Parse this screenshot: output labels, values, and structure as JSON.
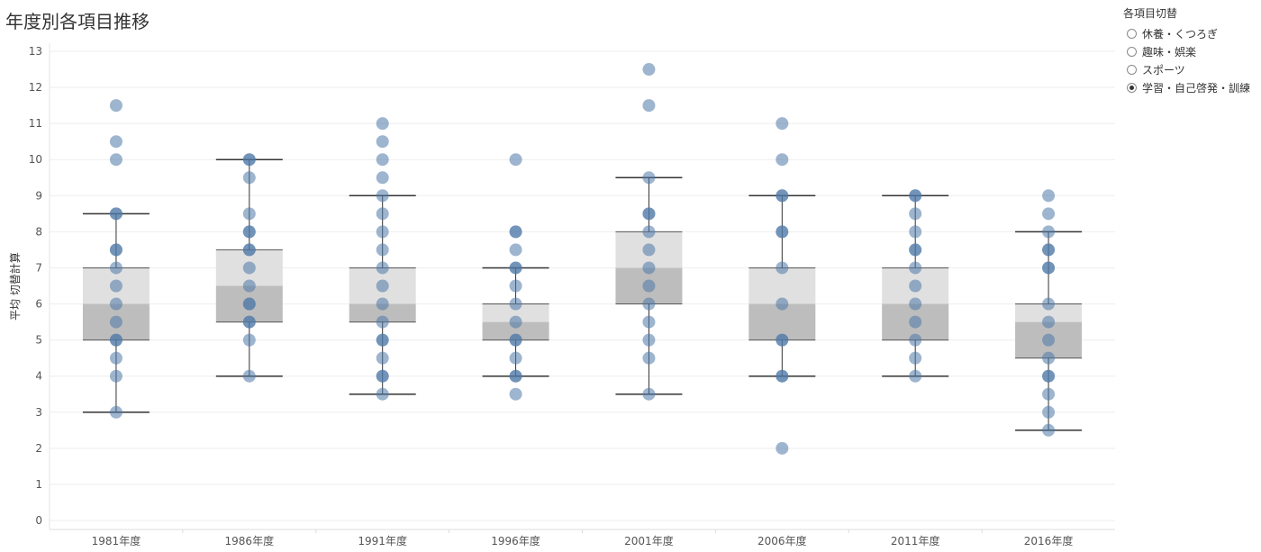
{
  "title": "年度別各項目推移",
  "legend": {
    "title": "各項目切替",
    "options": [
      {
        "label": "休養・くつろぎ",
        "selected": false
      },
      {
        "label": "趣味・娯楽",
        "selected": false
      },
      {
        "label": "スポーツ",
        "selected": false
      },
      {
        "label": "学習・自己啓発・訓練",
        "selected": true
      }
    ]
  },
  "colors": {
    "dot": "#4e79a7",
    "box_upper": "#e0e0e0",
    "box_lower": "#bdbdbd",
    "whisker": "#333333",
    "grid": "#eeeeee"
  },
  "chart_data": {
    "type": "box-and-scatter",
    "title": "年度別各項目推移",
    "ylabel": "平均 切替計算",
    "xlabel": "",
    "ylim": [
      0,
      13
    ],
    "yticks": [
      0,
      1,
      2,
      3,
      4,
      5,
      6,
      7,
      8,
      9,
      10,
      11,
      12,
      13
    ],
    "categories": [
      "1981年度",
      "1986年度",
      "1991年度",
      "1996年度",
      "2001年度",
      "2006年度",
      "2011年度",
      "2016年度"
    ],
    "boxes": [
      {
        "category": "1981年度",
        "whisker_low": 3,
        "q1": 5,
        "median": 6,
        "q3": 7,
        "whisker_high": 8.5
      },
      {
        "category": "1986年度",
        "whisker_low": 4,
        "q1": 5.5,
        "median": 6.5,
        "q3": 7.5,
        "whisker_high": 10
      },
      {
        "category": "1991年度",
        "whisker_low": 3.5,
        "q1": 5.5,
        "median": 6,
        "q3": 7,
        "whisker_high": 9
      },
      {
        "category": "1996年度",
        "whisker_low": 4,
        "q1": 5,
        "median": 5.5,
        "q3": 6,
        "whisker_high": 7
      },
      {
        "category": "2001年度",
        "whisker_low": 3.5,
        "q1": 6,
        "median": 7,
        "q3": 8,
        "whisker_high": 9.5
      },
      {
        "category": "2006年度",
        "whisker_low": 4,
        "q1": 5,
        "median": 6,
        "q3": 7,
        "whisker_high": 9
      },
      {
        "category": "2011年度",
        "whisker_low": 4,
        "q1": 5,
        "median": 6,
        "q3": 7,
        "whisker_high": 9
      },
      {
        "category": "2016年度",
        "whisker_low": 2.5,
        "q1": 4.5,
        "median": 5.5,
        "q3": 6,
        "whisker_high": 8
      }
    ],
    "points": [
      {
        "category": "1981年度",
        "values": [
          11.5,
          10.5,
          10,
          8.5,
          8.5,
          7.5,
          7.5,
          7,
          6.5,
          6,
          5.5,
          5,
          5,
          4.5,
          4,
          3
        ]
      },
      {
        "category": "1986年度",
        "values": [
          10,
          10,
          9.5,
          8.5,
          8,
          8,
          7.5,
          7.5,
          7,
          6.5,
          6,
          6,
          5.5,
          5.5,
          5,
          4
        ]
      },
      {
        "category": "1991年度",
        "values": [
          11,
          10.5,
          10,
          9.5,
          9,
          8.5,
          8,
          7.5,
          7,
          6.5,
          6,
          5.5,
          5,
          5,
          4.5,
          4,
          4,
          3.5
        ]
      },
      {
        "category": "1996年度",
        "values": [
          10,
          8,
          8,
          7.5,
          7,
          7,
          6.5,
          6,
          5.5,
          5,
          5,
          4.5,
          4,
          4,
          3.5
        ]
      },
      {
        "category": "2001年度",
        "values": [
          12.5,
          11.5,
          9.5,
          8.5,
          8.5,
          8,
          7.5,
          7,
          6.5,
          6,
          5.5,
          5,
          4.5,
          3.5
        ]
      },
      {
        "category": "2006年度",
        "values": [
          11,
          10,
          9,
          9,
          8,
          8,
          7,
          6,
          5,
          5,
          4,
          4,
          2
        ]
      },
      {
        "category": "2011年度",
        "values": [
          9,
          9,
          8.5,
          8,
          7.5,
          7.5,
          7,
          6.5,
          6,
          5.5,
          5,
          4.5,
          4
        ]
      },
      {
        "category": "2016年度",
        "values": [
          9,
          8.5,
          8,
          7.5,
          7.5,
          7,
          7,
          6,
          5.5,
          5,
          4.5,
          4,
          4,
          3.5,
          3,
          2.5
        ]
      }
    ]
  }
}
